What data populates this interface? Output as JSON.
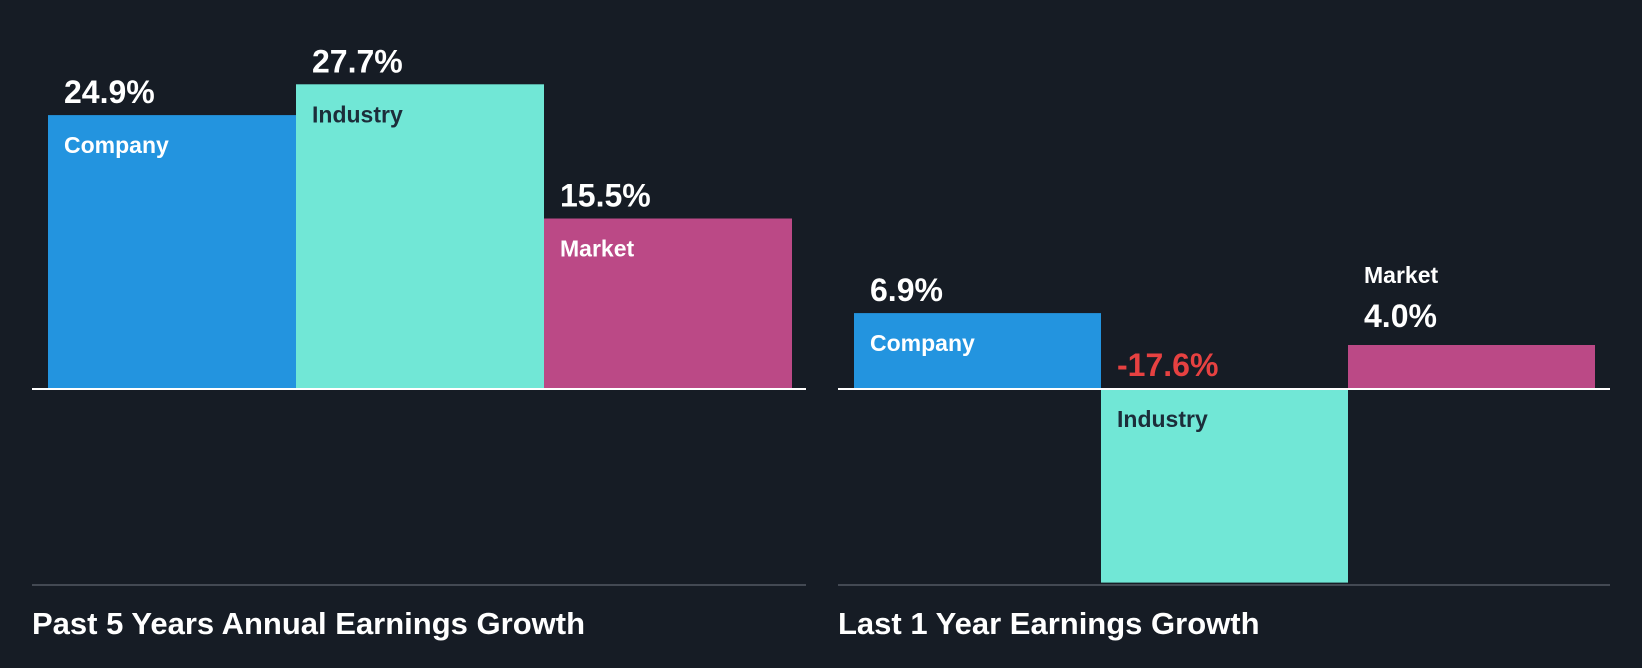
{
  "chart_data": [
    {
      "type": "bar",
      "title": "Past 5 Years Annual Earnings Growth",
      "unit": "%",
      "categories": [
        "Company",
        "Industry",
        "Market"
      ],
      "values": [
        24.9,
        27.7,
        15.5
      ],
      "value_labels": [
        "24.9%",
        "27.7%",
        "15.5%"
      ],
      "colors": [
        "#2394df",
        "#71e7d6",
        "#bb4986"
      ],
      "ylim": [
        -20,
        30
      ]
    },
    {
      "type": "bar",
      "title": "Last 1 Year Earnings Growth",
      "unit": "%",
      "categories": [
        "Company",
        "Industry",
        "Market"
      ],
      "values": [
        6.9,
        -17.6,
        4.0
      ],
      "value_labels": [
        "6.9%",
        "-17.6%",
        "4.0%"
      ],
      "colors": [
        "#2394df",
        "#71e7d6",
        "#bb4986"
      ],
      "ylim": [
        -20,
        30
      ]
    }
  ],
  "colors": {
    "background": "#161c25",
    "text": "#ffffff",
    "negative_value": "#e64141",
    "dark_label": "#1c2d3a",
    "baseline": "#ffffff",
    "bottom_rule": "#525863"
  }
}
